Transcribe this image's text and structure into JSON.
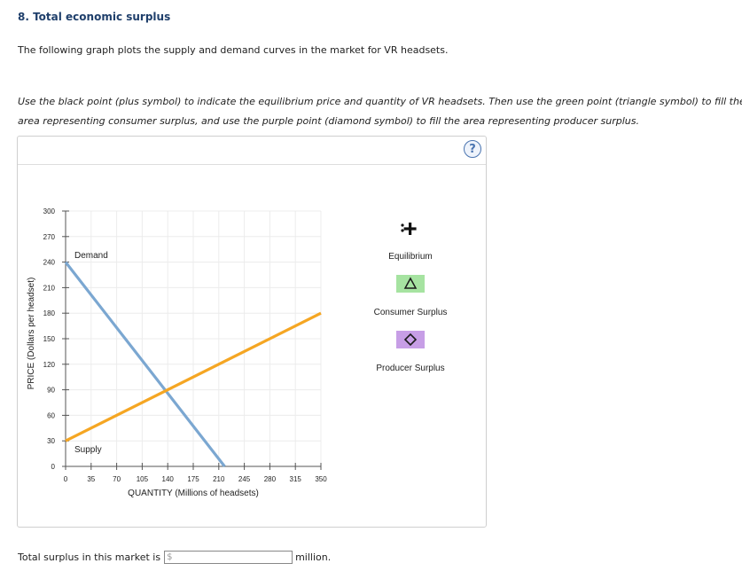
{
  "question": {
    "title": "8. Total economic surplus",
    "intro": "The following graph plots the supply and demand curves in the market for VR headsets.",
    "instructions": "Use the black point (plus symbol) to indicate the equilibrium price and quantity of VR headsets. Then use the green point (triangle symbol) to fill the area representing consumer surplus, and use the purple point (diamond symbol) to fill the area representing producer surplus."
  },
  "panel": {
    "help_icon": "?"
  },
  "chart_data": {
    "type": "line",
    "xlabel": "QUANTITY (Millions of headsets)",
    "ylabel": "PRICE (Dollars per headset)",
    "xlim": [
      0,
      350
    ],
    "ylim": [
      0,
      300
    ],
    "x_ticks": [
      0,
      35,
      70,
      105,
      140,
      175,
      210,
      245,
      280,
      315,
      350
    ],
    "y_ticks": [
      0,
      30,
      60,
      90,
      120,
      150,
      180,
      210,
      240,
      270,
      300
    ],
    "grid": true,
    "series": [
      {
        "name": "Demand",
        "color": "#7ba7d1",
        "x": [
          0,
          218
        ],
        "y": [
          240,
          0
        ]
      },
      {
        "name": "Supply",
        "color": "#f5a623",
        "x": [
          0,
          350
        ],
        "y": [
          30,
          180
        ]
      }
    ]
  },
  "tools": [
    {
      "label": "Equilibrium",
      "icon": "plus-icon",
      "color": "#111111"
    },
    {
      "label": "Consumer Surplus",
      "icon": "triangle-icon",
      "color": "#a6e3a1"
    },
    {
      "label": "Producer Surplus",
      "icon": "diamond-icon",
      "color": "#c79ee6"
    }
  ],
  "answer": {
    "prefix": "Total surplus in this market is",
    "currency": "$",
    "value": "",
    "suffix": "million."
  }
}
